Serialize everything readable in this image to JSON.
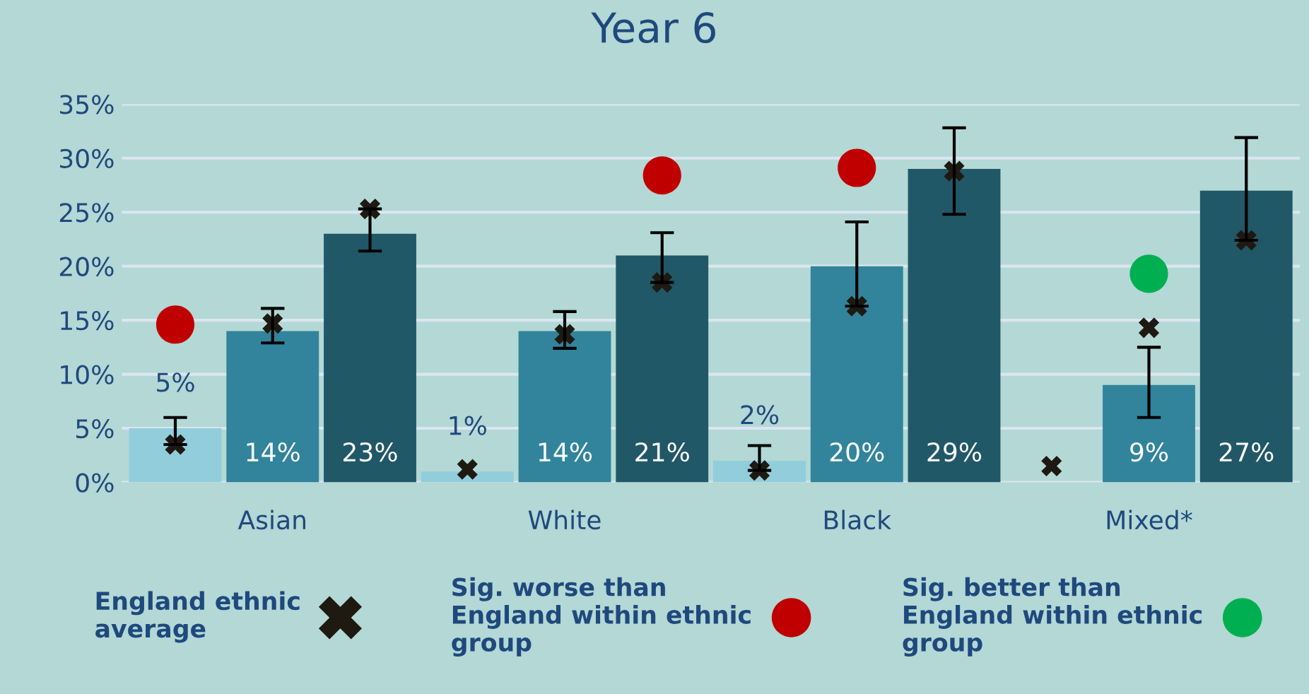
{
  "chart_data": {
    "type": "bar",
    "title": "Year 6",
    "categories": [
      null,
      "Asian",
      null,
      null,
      "White",
      null,
      null,
      "Black",
      null,
      null,
      "Mixed*",
      null
    ],
    "ylim": [
      0,
      35
    ],
    "yticks": [
      {
        "value": 0,
        "label": "0%"
      },
      {
        "value": 5,
        "label": "5%"
      },
      {
        "value": 10,
        "label": "10%"
      },
      {
        "value": 15,
        "label": "15%"
      },
      {
        "value": 20,
        "label": "20%"
      },
      {
        "value": 25,
        "label": "25%"
      },
      {
        "value": 30,
        "label": "30%"
      },
      {
        "value": 35,
        "label": "35%"
      }
    ],
    "grid": "y",
    "legend": "bottom",
    "series": [
      {
        "type": "bar",
        "colors": [
          "#92cddc",
          "#31849b",
          "#215868",
          "#92cddc",
          "#31849b",
          "#215868",
          "#92cddc",
          "#31849b",
          "#215868",
          "#92cddc",
          "#31849b",
          "#215868"
        ],
        "values": [
          5,
          14,
          23,
          1,
          14,
          21,
          2,
          20,
          29,
          null,
          9,
          27
        ],
        "errors": [
          [
            3.5,
            6.0
          ],
          [
            12.9,
            16.1
          ],
          [
            21.4,
            25.3
          ],
          null,
          [
            12.4,
            15.8
          ],
          [
            18.5,
            23.1
          ],
          [
            1.1,
            3.4
          ],
          [
            16.3,
            24.1
          ],
          [
            24.8,
            32.8
          ],
          null,
          [
            6.0,
            12.5
          ],
          [
            22.4,
            31.9
          ]
        ],
        "value_labels": [
          "5%",
          "14%",
          "23%",
          "1%",
          "14%",
          "21%",
          "2%",
          "20%",
          "29%",
          null,
          "9%",
          "27%"
        ]
      },
      {
        "type": "scatter",
        "name": "England ethnic\naverage",
        "color": "#1e1a12",
        "marker": "cross",
        "values": [
          3.5,
          14.7,
          25.3,
          1.2,
          13.7,
          18.5,
          1.1,
          16.3,
          28.8,
          1.5,
          14.3,
          22.4
        ]
      },
      {
        "type": "scatter",
        "name": "Sig. worse than\nEngland within ethnic\ngroup",
        "color": "#c00000",
        "marker": "circle",
        "values": [
          14.6,
          null,
          null,
          null,
          null,
          28.4,
          null,
          29.1,
          null,
          null,
          null,
          null
        ]
      },
      {
        "type": "scatter",
        "name": "Sig. better than\nEngland within ethnic\ngroup",
        "color": "#00b050",
        "marker": "circle",
        "values": [
          null,
          null,
          null,
          null,
          null,
          null,
          null,
          null,
          null,
          null,
          19.3,
          null
        ]
      }
    ]
  }
}
